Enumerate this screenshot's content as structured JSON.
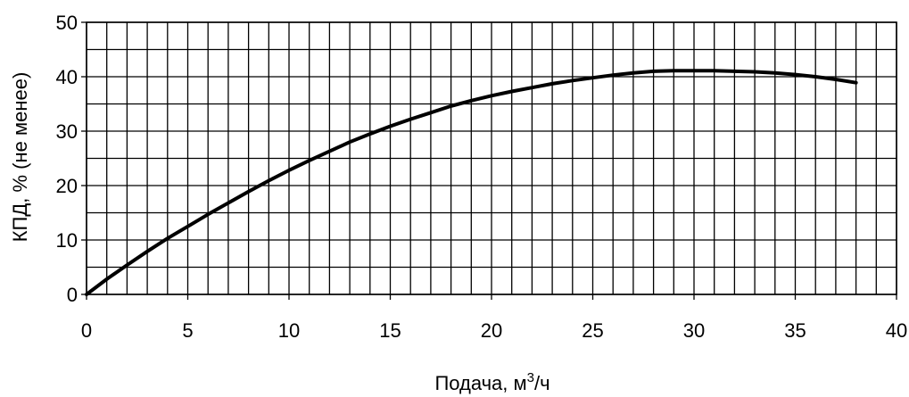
{
  "chart_data": {
    "type": "line",
    "title": "",
    "xlabel_main": "Подача, м",
    "xlabel_sup": "3",
    "xlabel_tail": "/ч",
    "ylabel": "КПД, % (не менее)",
    "xlim": [
      0,
      40
    ],
    "ylim": [
      0,
      50
    ],
    "x_ticks": [
      0,
      5,
      10,
      15,
      20,
      25,
      30,
      35,
      40
    ],
    "y_ticks": [
      0,
      10,
      20,
      30,
      40,
      50
    ],
    "x_minor_step": 1,
    "y_minor_step": 5,
    "grid": true,
    "series": [
      {
        "x": [
          0,
          1,
          2,
          3,
          4,
          5,
          6,
          7,
          8,
          9,
          10,
          11,
          12,
          13,
          14,
          15,
          16,
          17,
          18,
          19,
          20,
          21,
          22,
          23,
          24,
          25,
          26,
          27,
          28,
          29,
          30,
          31,
          32,
          33,
          34,
          35,
          36,
          37,
          38
        ],
        "y": [
          0,
          2.8,
          5.4,
          7.9,
          10.3,
          12.5,
          14.7,
          16.8,
          18.9,
          20.9,
          22.8,
          24.6,
          26.3,
          28.0,
          29.5,
          30.9,
          32.2,
          33.4,
          34.6,
          35.6,
          36.5,
          37.3,
          38.0,
          38.7,
          39.3,
          39.8,
          40.3,
          40.7,
          41.0,
          41.1,
          41.1,
          41.1,
          41.0,
          40.9,
          40.7,
          40.4,
          40.0,
          39.5,
          38.9
        ]
      }
    ]
  }
}
